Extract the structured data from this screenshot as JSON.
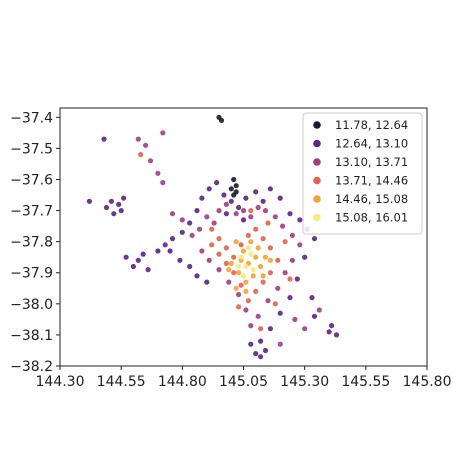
{
  "chart_data": {
    "type": "scatter",
    "title": "",
    "xlabel": "",
    "ylabel": "",
    "xlim": [
      144.3,
      145.8
    ],
    "ylim": [
      -38.2,
      -37.37
    ],
    "grid": false,
    "legend_placement": "upper right",
    "x_ticks": [
      {
        "value": 144.3,
        "label": "144.30"
      },
      {
        "value": 144.55,
        "label": "144.55"
      },
      {
        "value": 144.8,
        "label": "144.80"
      },
      {
        "value": 145.05,
        "label": "145.05"
      },
      {
        "value": 145.3,
        "label": "145.30"
      },
      {
        "value": 145.55,
        "label": "145.55"
      },
      {
        "value": 145.8,
        "label": "145.80"
      }
    ],
    "y_ticks": [
      {
        "value": -37.4,
        "label": "−37.4"
      },
      {
        "value": -37.5,
        "label": "−37.5"
      },
      {
        "value": -37.6,
        "label": "−37.6"
      },
      {
        "value": -37.7,
        "label": "−37.7"
      },
      {
        "value": -37.8,
        "label": "−37.8"
      },
      {
        "value": -37.9,
        "label": "−37.9"
      },
      {
        "value": -38.0,
        "label": "−38.0"
      },
      {
        "value": -38.1,
        "label": "−38.1"
      },
      {
        "value": -38.2,
        "label": "−38.2"
      }
    ],
    "series": [
      {
        "name": "11.78, 12.64",
        "color": "#1b1b2e",
        "points": [
          [
            144.95,
            -37.4
          ],
          [
            144.96,
            -37.41
          ],
          [
            145.01,
            -37.6
          ],
          [
            145.02,
            -37.62
          ],
          [
            145.0,
            -37.63
          ],
          [
            145.02,
            -37.64
          ],
          [
            145.01,
            -37.65
          ]
        ]
      },
      {
        "name": "12.64, 13.10",
        "color": "#5b2583",
        "points": [
          [
            144.42,
            -37.67
          ],
          [
            144.48,
            -37.47
          ],
          [
            144.49,
            -37.69
          ],
          [
            144.51,
            -37.67
          ],
          [
            144.52,
            -37.71
          ],
          [
            144.54,
            -37.68
          ],
          [
            144.55,
            -37.7
          ],
          [
            144.56,
            -37.66
          ],
          [
            144.57,
            -37.85
          ],
          [
            144.6,
            -37.88
          ],
          [
            144.62,
            -37.86
          ],
          [
            144.64,
            -37.84
          ],
          [
            144.66,
            -37.89
          ],
          [
            144.7,
            -37.83
          ],
          [
            144.73,
            -37.81
          ],
          [
            144.76,
            -37.79
          ],
          [
            144.8,
            -37.77
          ],
          [
            144.83,
            -37.74
          ],
          [
            144.86,
            -37.7
          ],
          [
            144.88,
            -37.66
          ],
          [
            144.91,
            -37.63
          ],
          [
            144.94,
            -37.61
          ],
          [
            144.97,
            -37.65
          ],
          [
            145.0,
            -37.67
          ],
          [
            145.03,
            -37.69
          ],
          [
            145.06,
            -37.66
          ],
          [
            145.1,
            -37.64
          ],
          [
            145.13,
            -37.67
          ],
          [
            145.16,
            -37.63
          ],
          [
            145.2,
            -37.66
          ],
          [
            145.24,
            -37.71
          ],
          [
            145.28,
            -37.73
          ],
          [
            145.31,
            -37.76
          ],
          [
            145.34,
            -37.79
          ],
          [
            145.3,
            -37.85
          ],
          [
            145.27,
            -37.92
          ],
          [
            145.24,
            -37.98
          ],
          [
            145.2,
            -38.03
          ],
          [
            145.16,
            -38.08
          ],
          [
            145.12,
            -38.12
          ],
          [
            145.1,
            -38.16
          ],
          [
            145.12,
            -38.17
          ],
          [
            145.14,
            -38.15
          ],
          [
            145.08,
            -38.13
          ],
          [
            145.4,
            -38.09
          ],
          [
            145.43,
            -38.1
          ],
          [
            145.41,
            -38.07
          ],
          [
            145.34,
            -38.04
          ],
          [
            145.33,
            -37.98
          ],
          [
            144.9,
            -37.93
          ],
          [
            144.86,
            -37.91
          ],
          [
            144.83,
            -37.88
          ],
          [
            144.79,
            -37.86
          ],
          [
            144.75,
            -37.83
          ],
          [
            144.98,
            -37.71
          ],
          [
            145.05,
            -37.73
          ]
        ]
      },
      {
        "name": "13.10, 13.71",
        "color": "#a23d83",
        "points": [
          [
            144.62,
            -37.47
          ],
          [
            144.65,
            -37.49
          ],
          [
            144.72,
            -37.45
          ],
          [
            144.67,
            -37.54
          ],
          [
            144.7,
            -37.58
          ],
          [
            144.72,
            -37.61
          ],
          [
            144.76,
            -37.71
          ],
          [
            144.8,
            -37.73
          ],
          [
            144.84,
            -37.78
          ],
          [
            144.87,
            -37.76
          ],
          [
            144.9,
            -37.72
          ],
          [
            144.93,
            -37.74
          ],
          [
            144.95,
            -37.7
          ],
          [
            144.98,
            -37.68
          ],
          [
            145.02,
            -37.71
          ],
          [
            145.05,
            -37.7
          ],
          [
            145.08,
            -37.72
          ],
          [
            145.11,
            -37.69
          ],
          [
            145.14,
            -37.7
          ],
          [
            145.18,
            -37.72
          ],
          [
            145.21,
            -37.75
          ],
          [
            145.25,
            -37.78
          ],
          [
            145.28,
            -37.81
          ],
          [
            145.25,
            -37.86
          ],
          [
            145.22,
            -37.9
          ],
          [
            145.19,
            -37.95
          ],
          [
            145.15,
            -37.99
          ],
          [
            145.11,
            -38.04
          ],
          [
            145.08,
            -38.07
          ],
          [
            145.06,
            -38.02
          ],
          [
            145.03,
            -37.97
          ],
          [
            144.99,
            -37.93
          ],
          [
            144.95,
            -37.89
          ],
          [
            144.91,
            -37.86
          ],
          [
            144.88,
            -37.83
          ],
          [
            145.26,
            -38.05
          ],
          [
            145.3,
            -38.08
          ],
          [
            145.36,
            -38.02
          ],
          [
            145.2,
            -38.13
          ]
        ]
      },
      {
        "name": "13.71, 14.46",
        "color": "#e0644a",
        "points": [
          [
            144.63,
            -37.52
          ],
          [
            144.92,
            -37.76
          ],
          [
            144.95,
            -37.79
          ],
          [
            144.98,
            -37.82
          ],
          [
            145.01,
            -37.85
          ],
          [
            145.04,
            -37.81
          ],
          [
            145.07,
            -37.78
          ],
          [
            145.1,
            -37.76
          ],
          [
            145.13,
            -37.79
          ],
          [
            145.16,
            -37.82
          ],
          [
            145.19,
            -37.86
          ],
          [
            145.16,
            -37.9
          ],
          [
            145.13,
            -37.93
          ],
          [
            145.1,
            -37.96
          ],
          [
            145.07,
            -37.99
          ],
          [
            145.04,
            -37.94
          ],
          [
            145.01,
            -37.9
          ],
          [
            144.98,
            -37.87
          ],
          [
            144.95,
            -37.84
          ],
          [
            144.92,
            -37.81
          ],
          [
            145.08,
            -37.7
          ],
          [
            145.15,
            -37.74
          ],
          [
            145.22,
            -37.8
          ],
          [
            145.24,
            -37.92
          ],
          [
            145.18,
            -38.0
          ],
          [
            145.12,
            -38.08
          ],
          [
            145.03,
            -38.01
          ]
        ]
      },
      {
        "name": "14.46, 15.08",
        "color": "#f6a134",
        "points": [
          [
            145.02,
            -37.8
          ],
          [
            145.05,
            -37.83
          ],
          [
            145.08,
            -37.8
          ],
          [
            145.11,
            -37.82
          ],
          [
            145.14,
            -37.85
          ],
          [
            145.12,
            -37.88
          ],
          [
            145.09,
            -37.91
          ],
          [
            145.06,
            -37.93
          ],
          [
            145.03,
            -37.9
          ],
          [
            145.0,
            -37.87
          ],
          [
            145.04,
            -37.86
          ],
          [
            145.07,
            -37.87
          ],
          [
            145.1,
            -37.85
          ],
          [
            145.06,
            -37.96
          ],
          [
            145.02,
            -37.95
          ],
          [
            144.99,
            -37.89
          ],
          [
            145.13,
            -37.91
          ],
          [
            145.16,
            -37.86
          ]
        ]
      },
      {
        "name": "15.08, 16.01",
        "color": "#f7e97a",
        "points": [
          [
            145.04,
            -37.85
          ],
          [
            145.06,
            -37.88
          ],
          [
            145.08,
            -37.84
          ],
          [
            145.05,
            -37.91
          ],
          [
            145.09,
            -37.89
          ],
          [
            145.03,
            -37.88
          ],
          [
            145.07,
            -37.82
          ]
        ]
      }
    ]
  }
}
